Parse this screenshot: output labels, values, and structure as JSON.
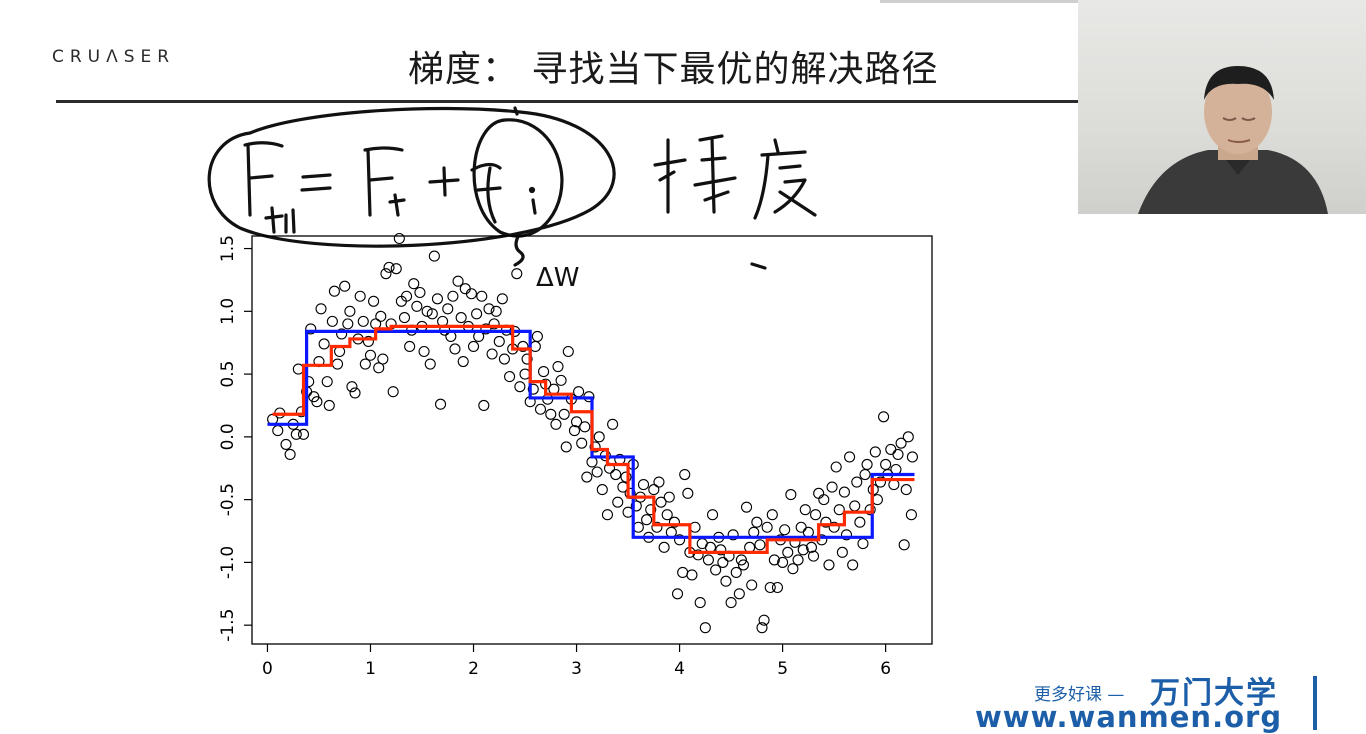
{
  "slide": {
    "logo": "CRUΛSER",
    "title": "梯度：  寻找当下最优的解决路径"
  },
  "watermark": {
    "label": "更多好课 —",
    "brand": "万门大学",
    "url": "www.wanmen.org"
  },
  "annotation": {
    "dw": "ΔW"
  },
  "colors": {
    "boost_series": "#ff2a00",
    "tree_series": "#0a18ff",
    "points": "#000000",
    "ink": "#111111",
    "watermark": "#1c5fa8"
  },
  "chart_data": {
    "type": "scatter",
    "title": "",
    "xlabel": "",
    "ylabel": "",
    "xlim": [
      -0.15,
      6.45
    ],
    "ylim": [
      -1.65,
      1.6
    ],
    "x_ticks": [
      "0",
      "1",
      "2",
      "3",
      "4",
      "5",
      "6"
    ],
    "y_ticks": [
      "-1.5",
      "-1.0",
      "-0.5",
      "0.0",
      "0.5",
      "1.0",
      "1.5"
    ],
    "points_function": "sin(x) + noise",
    "points": [
      [
        0.05,
        0.14
      ],
      [
        0.1,
        0.05
      ],
      [
        0.12,
        0.19
      ],
      [
        0.18,
        -0.06
      ],
      [
        0.22,
        -0.14
      ],
      [
        0.25,
        0.1
      ],
      [
        0.28,
        0.02
      ],
      [
        0.3,
        0.54
      ],
      [
        0.33,
        0.2
      ],
      [
        0.35,
        0.02
      ],
      [
        0.38,
        0.36
      ],
      [
        0.4,
        0.44
      ],
      [
        0.42,
        0.86
      ],
      [
        0.45,
        0.32
      ],
      [
        0.48,
        0.28
      ],
      [
        0.5,
        0.6
      ],
      [
        0.52,
        1.02
      ],
      [
        0.55,
        0.74
      ],
      [
        0.58,
        0.44
      ],
      [
        0.6,
        0.25
      ],
      [
        0.63,
        0.92
      ],
      [
        0.65,
        1.16
      ],
      [
        0.68,
        0.58
      ],
      [
        0.7,
        0.68
      ],
      [
        0.72,
        0.82
      ],
      [
        0.75,
        1.2
      ],
      [
        0.78,
        0.9
      ],
      [
        0.8,
        1.0
      ],
      [
        0.82,
        0.4
      ],
      [
        0.85,
        0.35
      ],
      [
        0.88,
        0.78
      ],
      [
        0.9,
        1.12
      ],
      [
        0.93,
        0.92
      ],
      [
        0.95,
        0.58
      ],
      [
        0.98,
        0.76
      ],
      [
        1.0,
        0.65
      ],
      [
        1.03,
        1.08
      ],
      [
        1.05,
        0.9
      ],
      [
        1.08,
        0.55
      ],
      [
        1.1,
        0.96
      ],
      [
        1.12,
        0.62
      ],
      [
        1.15,
        1.3
      ],
      [
        1.18,
        1.35
      ],
      [
        1.2,
        0.9
      ],
      [
        1.22,
        0.36
      ],
      [
        1.25,
        1.34
      ],
      [
        1.28,
        1.58
      ],
      [
        1.3,
        1.08
      ],
      [
        1.33,
        0.95
      ],
      [
        1.35,
        1.12
      ],
      [
        1.38,
        0.72
      ],
      [
        1.4,
        0.85
      ],
      [
        1.42,
        1.22
      ],
      [
        1.45,
        1.04
      ],
      [
        1.48,
        1.15
      ],
      [
        1.5,
        0.88
      ],
      [
        1.52,
        0.68
      ],
      [
        1.55,
        1.0
      ],
      [
        1.58,
        0.58
      ],
      [
        1.6,
        0.98
      ],
      [
        1.62,
        1.44
      ],
      [
        1.65,
        1.1
      ],
      [
        1.68,
        0.26
      ],
      [
        1.7,
        0.92
      ],
      [
        1.72,
        0.85
      ],
      [
        1.75,
        1.02
      ],
      [
        1.78,
        0.8
      ],
      [
        1.8,
        1.12
      ],
      [
        1.82,
        0.7
      ],
      [
        1.85,
        1.24
      ],
      [
        1.88,
        0.95
      ],
      [
        1.9,
        0.6
      ],
      [
        1.92,
        1.18
      ],
      [
        1.95,
        0.88
      ],
      [
        1.98,
        1.14
      ],
      [
        2.0,
        0.72
      ],
      [
        2.03,
        0.98
      ],
      [
        2.05,
        0.8
      ],
      [
        2.08,
        1.12
      ],
      [
        2.1,
        0.25
      ],
      [
        2.12,
        0.86
      ],
      [
        2.15,
        1.02
      ],
      [
        2.18,
        0.66
      ],
      [
        2.2,
        0.9
      ],
      [
        2.22,
        1.0
      ],
      [
        2.25,
        0.76
      ],
      [
        2.28,
        1.1
      ],
      [
        2.3,
        0.62
      ],
      [
        2.32,
        0.85
      ],
      [
        2.35,
        0.48
      ],
      [
        2.38,
        0.7
      ],
      [
        2.4,
        0.84
      ],
      [
        2.42,
        1.3
      ],
      [
        2.45,
        0.4
      ],
      [
        2.48,
        0.72
      ],
      [
        2.5,
        0.5
      ],
      [
        2.52,
        0.62
      ],
      [
        2.55,
        0.28
      ],
      [
        2.58,
        0.38
      ],
      [
        2.6,
        0.72
      ],
      [
        2.62,
        0.8
      ],
      [
        2.65,
        0.22
      ],
      [
        2.68,
        0.52
      ],
      [
        2.7,
        0.42
      ],
      [
        2.72,
        0.3
      ],
      [
        2.75,
        0.18
      ],
      [
        2.78,
        0.38
      ],
      [
        2.8,
        0.1
      ],
      [
        2.82,
        0.56
      ],
      [
        2.85,
        0.45
      ],
      [
        2.88,
        0.18
      ],
      [
        2.9,
        -0.08
      ],
      [
        2.92,
        0.68
      ],
      [
        2.95,
        0.3
      ],
      [
        2.98,
        0.05
      ],
      [
        3.0,
        0.12
      ],
      [
        3.02,
        0.36
      ],
      [
        3.05,
        -0.05
      ],
      [
        3.08,
        0.08
      ],
      [
        3.1,
        -0.32
      ],
      [
        3.12,
        0.32
      ],
      [
        3.15,
        -0.2
      ],
      [
        3.18,
        -0.08
      ],
      [
        3.2,
        -0.28
      ],
      [
        3.22,
        0.0
      ],
      [
        3.25,
        -0.42
      ],
      [
        3.28,
        -0.15
      ],
      [
        3.3,
        -0.62
      ],
      [
        3.32,
        -0.25
      ],
      [
        3.35,
        0.1
      ],
      [
        3.38,
        -0.3
      ],
      [
        3.4,
        -0.52
      ],
      [
        3.42,
        -0.18
      ],
      [
        3.45,
        -0.4
      ],
      [
        3.48,
        -0.32
      ],
      [
        3.5,
        -0.6
      ],
      [
        3.52,
        -0.45
      ],
      [
        3.55,
        -0.22
      ],
      [
        3.58,
        -0.55
      ],
      [
        3.6,
        -0.72
      ],
      [
        3.62,
        -0.48
      ],
      [
        3.65,
        -0.38
      ],
      [
        3.68,
        -0.66
      ],
      [
        3.7,
        -0.8
      ],
      [
        3.72,
        -0.58
      ],
      [
        3.75,
        -0.42
      ],
      [
        3.78,
        -0.72
      ],
      [
        3.8,
        -0.36
      ],
      [
        3.82,
        -0.52
      ],
      [
        3.85,
        -0.88
      ],
      [
        3.88,
        -0.62
      ],
      [
        3.9,
        -0.48
      ],
      [
        3.92,
        -0.76
      ],
      [
        3.95,
        -0.68
      ],
      [
        3.98,
        -1.25
      ],
      [
        4.0,
        -0.82
      ],
      [
        4.03,
        -1.08
      ],
      [
        4.05,
        -0.3
      ],
      [
        4.08,
        -0.45
      ],
      [
        4.1,
        -0.92
      ],
      [
        4.12,
        -1.1
      ],
      [
        4.15,
        -0.72
      ],
      [
        4.18,
        -0.94
      ],
      [
        4.2,
        -1.32
      ],
      [
        4.22,
        -0.85
      ],
      [
        4.25,
        -1.52
      ],
      [
        4.28,
        -0.98
      ],
      [
        4.3,
        -0.88
      ],
      [
        4.32,
        -0.62
      ],
      [
        4.35,
        -1.06
      ],
      [
        4.38,
        -0.8
      ],
      [
        4.4,
        -0.9
      ],
      [
        4.42,
        -1.0
      ],
      [
        4.45,
        -1.15
      ],
      [
        4.48,
        -0.95
      ],
      [
        4.5,
        -1.32
      ],
      [
        4.52,
        -0.78
      ],
      [
        4.55,
        -1.08
      ],
      [
        4.58,
        -1.25
      ],
      [
        4.6,
        -0.98
      ],
      [
        4.62,
        -1.02
      ],
      [
        4.65,
        -0.56
      ],
      [
        4.68,
        -0.88
      ],
      [
        4.7,
        -1.18
      ],
      [
        4.72,
        -0.76
      ],
      [
        4.75,
        -0.68
      ],
      [
        4.78,
        -0.86
      ],
      [
        4.8,
        -1.52
      ],
      [
        4.82,
        -1.46
      ],
      [
        4.85,
        -0.72
      ],
      [
        4.88,
        -1.2
      ],
      [
        4.9,
        -0.62
      ],
      [
        4.92,
        -0.98
      ],
      [
        4.95,
        -1.2
      ],
      [
        4.98,
        -0.82
      ],
      [
        5.0,
        -1.0
      ],
      [
        5.02,
        -0.74
      ],
      [
        5.05,
        -0.92
      ],
      [
        5.08,
        -0.46
      ],
      [
        5.1,
        -1.05
      ],
      [
        5.12,
        -0.84
      ],
      [
        5.15,
        -0.98
      ],
      [
        5.18,
        -0.72
      ],
      [
        5.2,
        -0.9
      ],
      [
        5.22,
        -0.58
      ],
      [
        5.25,
        -0.76
      ],
      [
        5.28,
        -0.88
      ],
      [
        5.3,
        -0.95
      ],
      [
        5.32,
        -0.62
      ],
      [
        5.35,
        -0.45
      ],
      [
        5.38,
        -0.82
      ],
      [
        5.4,
        -0.5
      ],
      [
        5.42,
        -0.68
      ],
      [
        5.45,
        -1.02
      ],
      [
        5.48,
        -0.4
      ],
      [
        5.5,
        -0.72
      ],
      [
        5.52,
        -0.24
      ],
      [
        5.55,
        -0.58
      ],
      [
        5.58,
        -0.92
      ],
      [
        5.6,
        -0.44
      ],
      [
        5.62,
        -0.78
      ],
      [
        5.65,
        -0.16
      ],
      [
        5.68,
        -1.02
      ],
      [
        5.7,
        -0.55
      ],
      [
        5.72,
        -0.36
      ],
      [
        5.75,
        -0.68
      ],
      [
        5.78,
        -0.85
      ],
      [
        5.8,
        -0.3
      ],
      [
        5.82,
        -0.22
      ],
      [
        5.85,
        -0.58
      ],
      [
        5.88,
        -0.42
      ],
      [
        5.9,
        -0.12
      ],
      [
        5.92,
        -0.5
      ],
      [
        5.95,
        -0.36
      ],
      [
        5.98,
        0.16
      ],
      [
        6.0,
        -0.22
      ],
      [
        6.02,
        -0.3
      ],
      [
        6.05,
        -0.1
      ],
      [
        6.08,
        -0.38
      ],
      [
        6.1,
        -0.26
      ],
      [
        6.12,
        -0.14
      ],
      [
        6.15,
        -0.05
      ],
      [
        6.18,
        -0.86
      ],
      [
        6.2,
        -0.42
      ],
      [
        6.22,
        0.0
      ],
      [
        6.25,
        -0.62
      ],
      [
        6.26,
        -0.16
      ]
    ],
    "series": [
      {
        "color": "#0a18ff",
        "step_segments": [
          [
            0.0,
            0.38,
            0.1
          ],
          [
            0.38,
            2.55,
            0.84
          ],
          [
            2.55,
            3.15,
            0.31
          ],
          [
            3.15,
            3.55,
            -0.16
          ],
          [
            3.55,
            5.87,
            -0.8
          ],
          [
            5.87,
            6.28,
            -0.3
          ]
        ]
      },
      {
        "color": "#ff2a00",
        "step_segments": [
          [
            0.05,
            0.35,
            0.18
          ],
          [
            0.35,
            0.62,
            0.57
          ],
          [
            0.62,
            0.8,
            0.72
          ],
          [
            0.8,
            1.05,
            0.78
          ],
          [
            1.05,
            1.2,
            0.86
          ],
          [
            1.2,
            2.38,
            0.88
          ],
          [
            2.38,
            2.55,
            0.7
          ],
          [
            2.55,
            2.7,
            0.44
          ],
          [
            2.7,
            2.95,
            0.34
          ],
          [
            2.95,
            3.15,
            0.2
          ],
          [
            3.15,
            3.3,
            -0.1
          ],
          [
            3.3,
            3.5,
            -0.22
          ],
          [
            3.5,
            3.75,
            -0.48
          ],
          [
            3.75,
            4.1,
            -0.7
          ],
          [
            4.1,
            4.85,
            -0.92
          ],
          [
            4.85,
            5.35,
            -0.82
          ],
          [
            5.35,
            5.6,
            -0.7
          ],
          [
            5.6,
            5.87,
            -0.6
          ],
          [
            5.87,
            6.28,
            -0.34
          ]
        ]
      }
    ]
  }
}
